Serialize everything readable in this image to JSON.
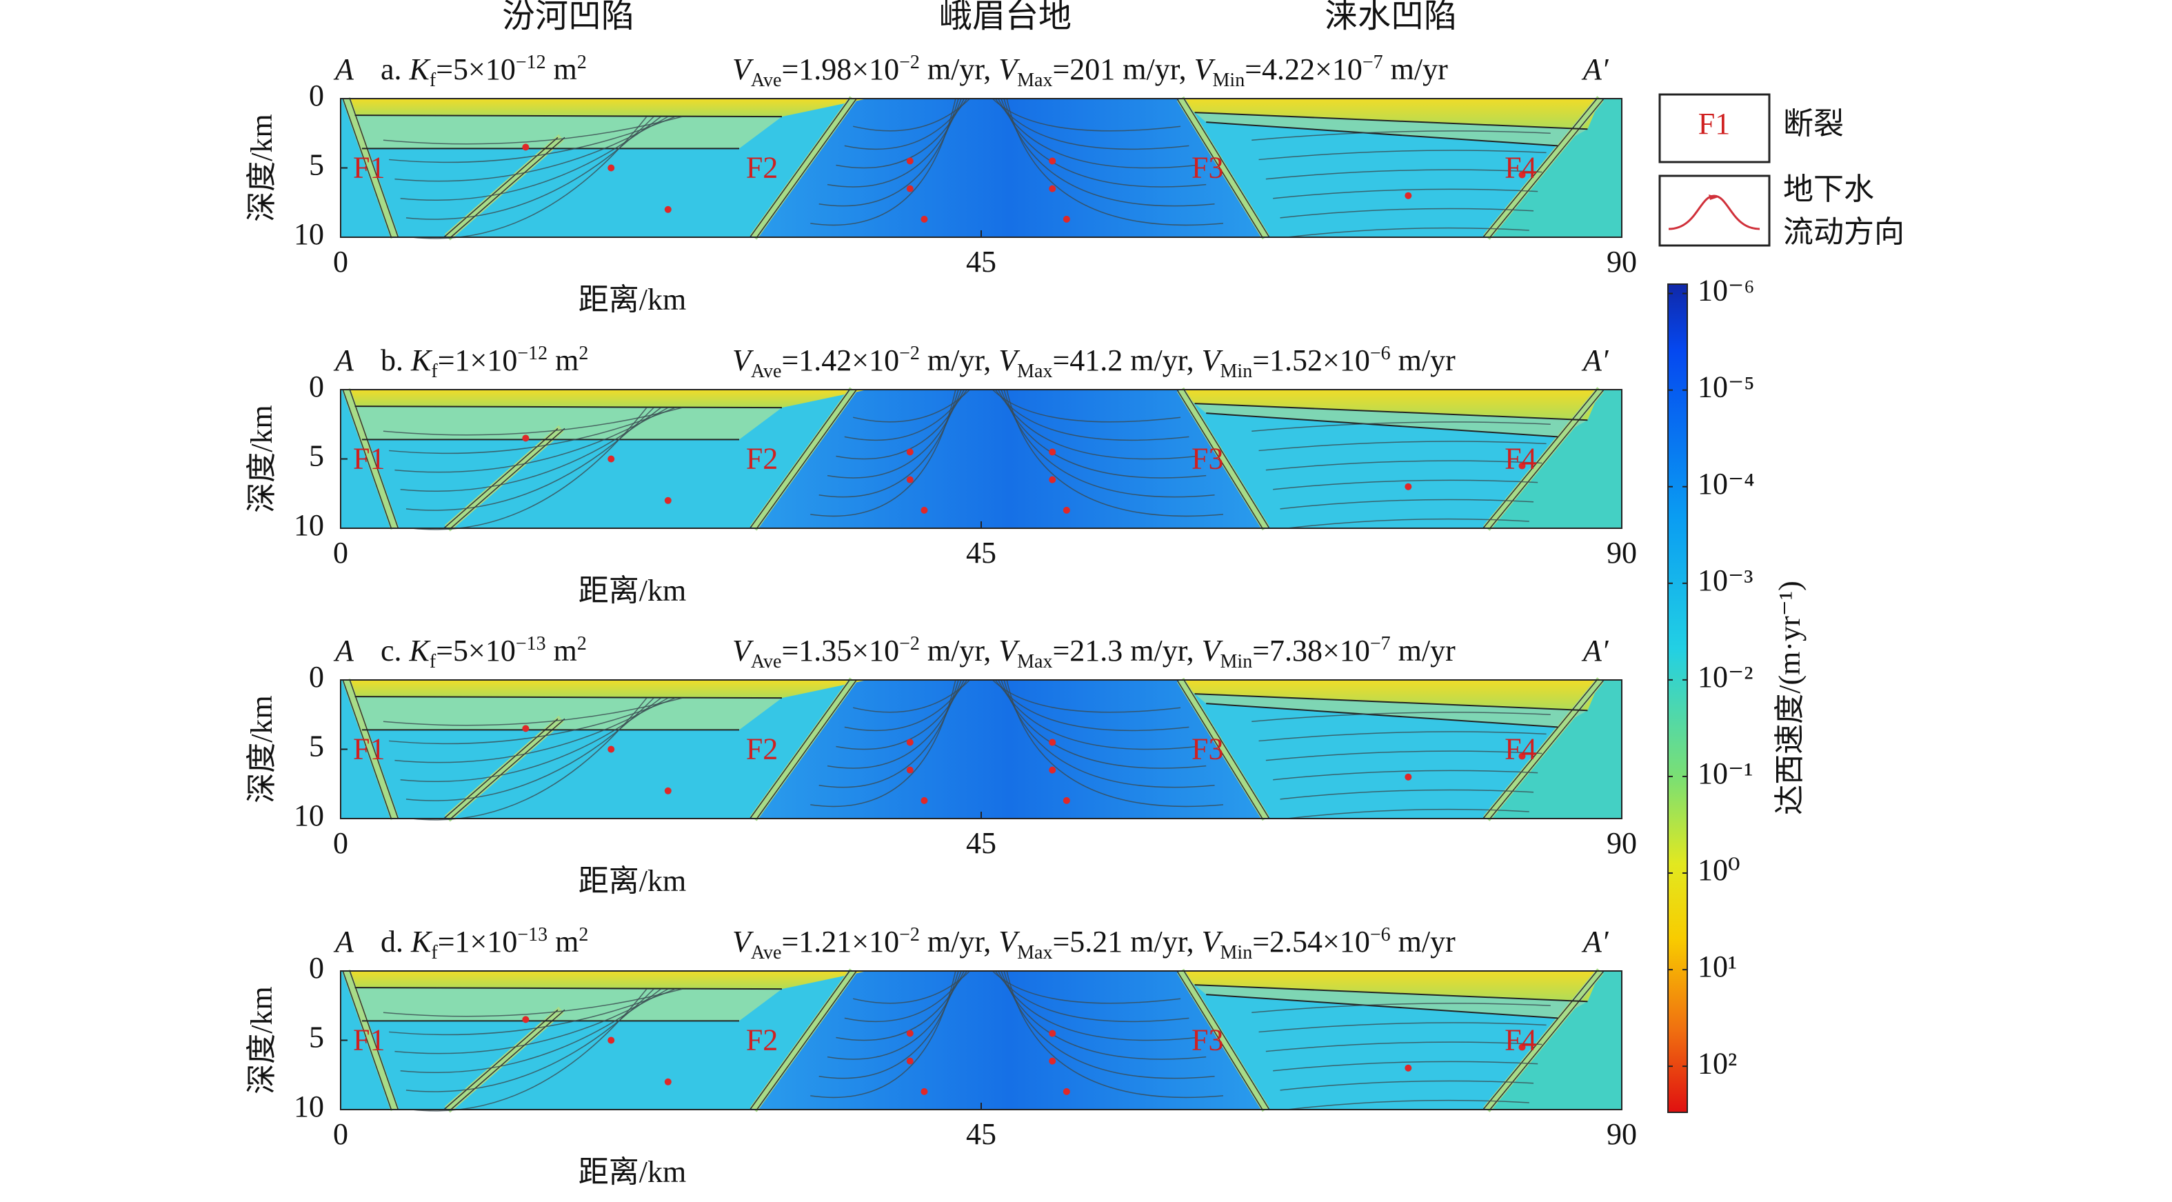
{
  "regions": [
    "汾河凹陷",
    "峨眉台地",
    "涞水凹陷"
  ],
  "chart_data": [
    {
      "type": "section",
      "ends": [
        "A",
        "A′"
      ],
      "title_left": [
        [
          "a. ",
          "n"
        ],
        [
          "K",
          "i"
        ],
        [
          "f",
          "sub"
        ],
        [
          "=5×10",
          "n"
        ],
        [
          "−12",
          "sup"
        ],
        [
          " m",
          "n"
        ],
        [
          "2",
          "sup"
        ]
      ],
      "title_right": [
        [
          "V",
          "i"
        ],
        [
          "Ave",
          "sub"
        ],
        [
          "=1.98×10",
          "n"
        ],
        [
          "−2",
          "sup"
        ],
        [
          " m/yr, ",
          "n"
        ],
        [
          "V",
          "i"
        ],
        [
          "Max",
          "sub"
        ],
        [
          "=201 m/yr, ",
          "n"
        ],
        [
          "V",
          "i"
        ],
        [
          "Min",
          "sub"
        ],
        [
          "=4.22×10",
          "n"
        ],
        [
          "−7",
          "sup"
        ],
        [
          " m/yr",
          "n"
        ]
      ],
      "faults": [
        "F1",
        "F2",
        "F3",
        "F4"
      ],
      "xlabel": "距离/km",
      "ylabel": "深度/km",
      "xlim": [
        0,
        90
      ],
      "xticks": [
        0,
        45,
        90
      ],
      "ylim": [
        0,
        10
      ],
      "yticks": [
        0,
        5,
        10
      ],
      "y_inverted": true
    },
    {
      "type": "section",
      "ends": [
        "A",
        "A′"
      ],
      "title_left": [
        [
          "b. ",
          "n"
        ],
        [
          "K",
          "i"
        ],
        [
          "f",
          "sub"
        ],
        [
          "=1×10",
          "n"
        ],
        [
          "−12",
          "sup"
        ],
        [
          " m",
          "n"
        ],
        [
          "2",
          "sup"
        ]
      ],
      "title_right": [
        [
          "V",
          "i"
        ],
        [
          "Ave",
          "sub"
        ],
        [
          "=1.42×10",
          "n"
        ],
        [
          "−2",
          "sup"
        ],
        [
          " m/yr, ",
          "n"
        ],
        [
          "V",
          "i"
        ],
        [
          "Max",
          "sub"
        ],
        [
          "=41.2 m/yr, ",
          "n"
        ],
        [
          "V",
          "i"
        ],
        [
          "Min",
          "sub"
        ],
        [
          "=1.52×10",
          "n"
        ],
        [
          "−6",
          "sup"
        ],
        [
          " m/yr",
          "n"
        ]
      ],
      "faults": [
        "F1",
        "F2",
        "F3",
        "F4"
      ],
      "xlabel": "距离/km",
      "ylabel": "深度/km",
      "xlim": [
        0,
        90
      ],
      "xticks": [
        0,
        45,
        90
      ],
      "ylim": [
        0,
        10
      ],
      "yticks": [
        0,
        5,
        10
      ],
      "y_inverted": true
    },
    {
      "type": "section",
      "ends": [
        "A",
        "A′"
      ],
      "title_left": [
        [
          "c. ",
          "n"
        ],
        [
          "K",
          "i"
        ],
        [
          "f",
          "sub"
        ],
        [
          "=5×10",
          "n"
        ],
        [
          "−13",
          "sup"
        ],
        [
          " m",
          "n"
        ],
        [
          "2",
          "sup"
        ]
      ],
      "title_right": [
        [
          "V",
          "i"
        ],
        [
          "Ave",
          "sub"
        ],
        [
          "=1.35×10",
          "n"
        ],
        [
          "−2",
          "sup"
        ],
        [
          " m/yr, ",
          "n"
        ],
        [
          "V",
          "i"
        ],
        [
          "Max",
          "sub"
        ],
        [
          "=21.3 m/yr, ",
          "n"
        ],
        [
          "V",
          "i"
        ],
        [
          "Min",
          "sub"
        ],
        [
          "=7.38×10",
          "n"
        ],
        [
          "−7",
          "sup"
        ],
        [
          " m/yr",
          "n"
        ]
      ],
      "faults": [
        "F1",
        "F2",
        "F3",
        "F4"
      ],
      "xlabel": "距离/km",
      "ylabel": "深度/km",
      "xlim": [
        0,
        90
      ],
      "xticks": [
        0,
        45,
        90
      ],
      "ylim": [
        0,
        10
      ],
      "yticks": [
        0,
        5,
        10
      ],
      "y_inverted": true
    },
    {
      "type": "section",
      "ends": [
        "A",
        "A′"
      ],
      "title_left": [
        [
          "d. ",
          "n"
        ],
        [
          "K",
          "i"
        ],
        [
          "f",
          "sub"
        ],
        [
          "=1×10",
          "n"
        ],
        [
          "−13",
          "sup"
        ],
        [
          " m",
          "n"
        ],
        [
          "2",
          "sup"
        ]
      ],
      "title_right": [
        [
          "V",
          "i"
        ],
        [
          "Ave",
          "sub"
        ],
        [
          "=1.21×10",
          "n"
        ],
        [
          "−2",
          "sup"
        ],
        [
          " m/yr, ",
          "n"
        ],
        [
          "V",
          "i"
        ],
        [
          "Max",
          "sub"
        ],
        [
          "=5.21 m/yr, ",
          "n"
        ],
        [
          "V",
          "i"
        ],
        [
          "Min",
          "sub"
        ],
        [
          "=2.54×10",
          "n"
        ],
        [
          "−6",
          "sup"
        ],
        [
          " m/yr",
          "n"
        ]
      ],
      "faults": [
        "F1",
        "F2",
        "F3",
        "F4"
      ],
      "xlabel": "距离/km",
      "ylabel": "深度/km",
      "xlim": [
        0,
        90
      ],
      "xticks": [
        0,
        45,
        90
      ],
      "ylim": [
        0,
        10
      ],
      "yticks": [
        0,
        5,
        10
      ],
      "y_inverted": true
    }
  ],
  "colorbar": {
    "label": "达西速度/(m·yr⁻¹)",
    "log": true,
    "lim": [
      8e-07,
      300
    ],
    "ticks": [
      {
        "value": 1e-06,
        "label": "10⁻⁶"
      },
      {
        "value": 1e-05,
        "label": "10⁻⁵"
      },
      {
        "value": 0.0001,
        "label": "10⁻⁴"
      },
      {
        "value": 0.001,
        "label": "10⁻³"
      },
      {
        "value": 0.01,
        "label": "10⁻²"
      },
      {
        "value": 0.1,
        "label": "10⁻¹"
      },
      {
        "value": 1,
        "label": "10⁰"
      },
      {
        "value": 10,
        "label": "10¹"
      },
      {
        "value": 100,
        "label": "10²"
      }
    ]
  },
  "legend": {
    "items": [
      {
        "symbol": "F1",
        "label": [
          "断裂"
        ]
      },
      {
        "label": [
          "地下水",
          "流动方向"
        ]
      }
    ]
  }
}
